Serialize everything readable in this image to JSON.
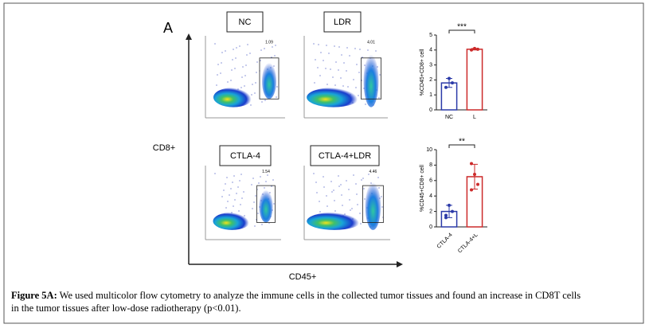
{
  "figure": {
    "panel_label": "A",
    "y_axis_label": "CD8+",
    "x_axis_label": "CD45+",
    "flow_plots": [
      {
        "label": "NC",
        "gate_value": "1.09"
      },
      {
        "label": "LDR",
        "gate_value": "4.01"
      },
      {
        "label": "CTLA-4",
        "gate_value": "1.54"
      },
      {
        "label": "CTLA-4+LDR",
        "gate_value": "4.46"
      }
    ]
  },
  "caption": {
    "label": "Figure 5A:",
    "text": "We used multicolor flow cytometry to analyze the immune cells in the collected tumor tissues and found an increase in CD8T cells in the tumor tissues after low-dose radiotherapy (p<0.01)."
  },
  "chart_data": [
    {
      "type": "bar",
      "y_label": "%CD45+CD8+ cell",
      "categories": [
        "NC",
        "L"
      ],
      "values": [
        1.8,
        4.05
      ],
      "errors": [
        0.3,
        0.05
      ],
      "points": [
        [
          1.5,
          2.1,
          1.8
        ],
        [
          4.0,
          4.1,
          4.05
        ]
      ],
      "colors": [
        "#2b3aa8",
        "#cc2a2a"
      ],
      "significance": "***",
      "ylim": [
        0,
        5
      ],
      "yticks": [
        0,
        1,
        2,
        3,
        4,
        5
      ]
    },
    {
      "type": "bar",
      "y_label": "%CD45+CD8+ cell",
      "categories": [
        "CTLA-4",
        "CTLA-4+L"
      ],
      "values": [
        2.0,
        6.5
      ],
      "errors": [
        0.8,
        1.6
      ],
      "points": [
        [
          1.2,
          2.8,
          2.0,
          1.5
        ],
        [
          8.2,
          6.8,
          5.5,
          4.8
        ]
      ],
      "colors": [
        "#2b3aa8",
        "#cc2a2a"
      ],
      "significance": "**",
      "ylim": [
        0,
        10
      ],
      "yticks": [
        0,
        2,
        4,
        6,
        8,
        10
      ]
    }
  ]
}
